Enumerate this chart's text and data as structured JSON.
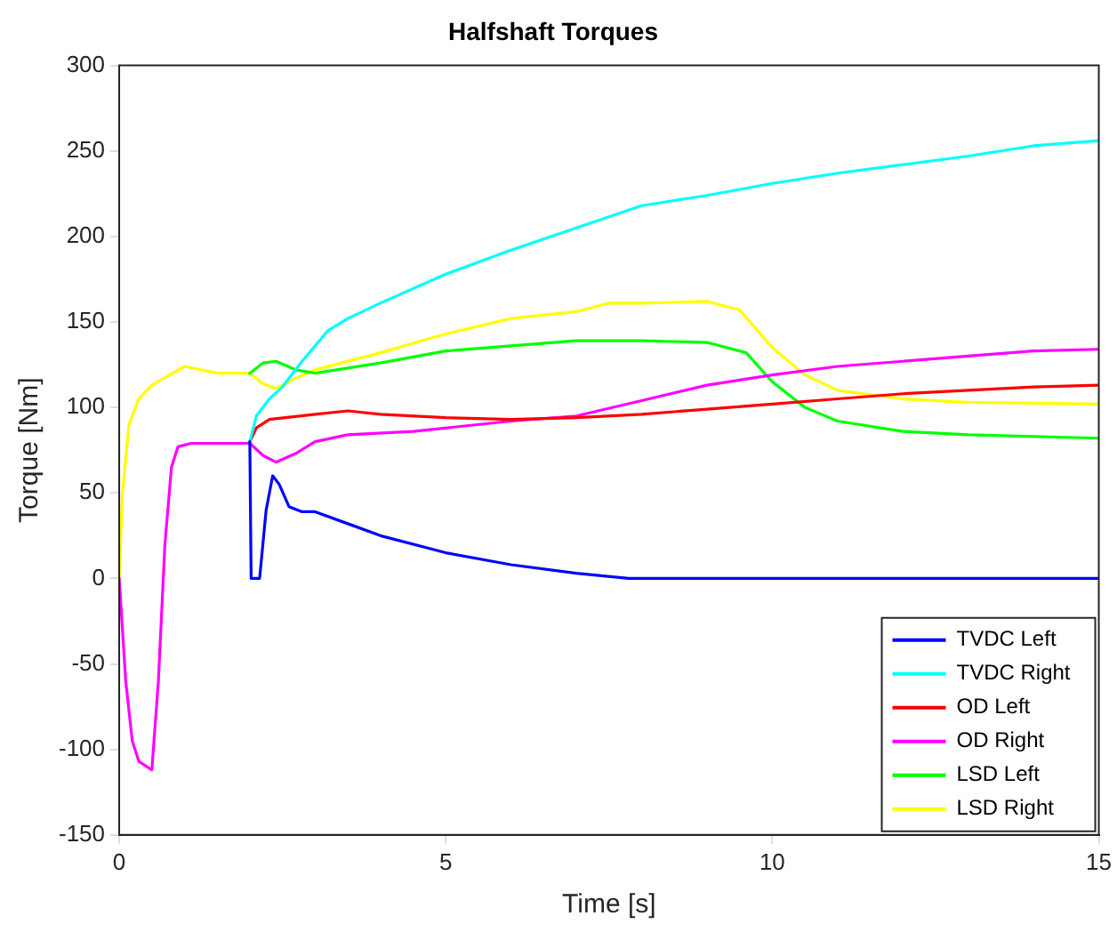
{
  "chart_data": {
    "type": "line",
    "title": "Halfshaft Torques",
    "xlabel": "Time [s]",
    "ylabel": "Torque [Nm]",
    "xlim": [
      0,
      15
    ],
    "xticks": [
      0,
      5,
      10,
      15
    ],
    "ylim": [
      -150,
      300
    ],
    "yticks": [
      -150,
      -100,
      -50,
      0,
      50,
      100,
      150,
      200,
      250,
      300
    ],
    "grid": false,
    "legend": "bottom right",
    "marker": "none",
    "line_style": "solid",
    "series": [
      {
        "name": "TVDC Left",
        "color": "#0000ff",
        "x": [
          2,
          2.02,
          2.15,
          2.25,
          2.35,
          2.45,
          2.6,
          2.8,
          3,
          3.5,
          4,
          5,
          6,
          7,
          7.8,
          15
        ],
        "values": [
          80,
          0,
          0,
          40,
          60,
          55,
          42,
          39,
          39,
          32,
          25,
          15,
          8,
          3,
          0,
          0
        ]
      },
      {
        "name": "TVDC Right",
        "color": "#00ffff",
        "x": [
          2,
          2.1,
          2.3,
          2.5,
          2.8,
          3.2,
          3.5,
          4,
          5,
          6,
          7,
          8,
          9,
          10,
          11,
          12,
          13,
          14,
          15
        ],
        "values": [
          80,
          95,
          105,
          112,
          127,
          145,
          152,
          161,
          178,
          192,
          205,
          218,
          224,
          231,
          237,
          242,
          247,
          253,
          256
        ]
      },
      {
        "name": "OD Left",
        "color": "#ff0000",
        "x": [
          2,
          2.1,
          2.3,
          3,
          3.5,
          4,
          5,
          6,
          7,
          8,
          9,
          10,
          11,
          12,
          13,
          14,
          15
        ],
        "values": [
          80,
          88,
          93,
          96,
          98,
          96,
          94,
          93,
          94,
          96,
          99,
          102,
          105,
          108,
          110,
          112,
          113
        ]
      },
      {
        "name": "OD Right",
        "color": "#ff00ff",
        "x": [
          0,
          0.1,
          0.2,
          0.3,
          0.5,
          0.6,
          0.7,
          0.8,
          0.9,
          1.1,
          2,
          2.2,
          2.4,
          2.7,
          3,
          3.5,
          4.5,
          6,
          7,
          8,
          9,
          10,
          11,
          12,
          13,
          14,
          15
        ],
        "values": [
          0,
          -60,
          -95,
          -107,
          -112,
          -60,
          20,
          65,
          77,
          79,
          79,
          72,
          68,
          73,
          80,
          84,
          86,
          92,
          95,
          104,
          113,
          119,
          124,
          127,
          130,
          133,
          134
        ]
      },
      {
        "name": "LSD Left",
        "color": "#00ff00",
        "x": [
          2,
          2.2,
          2.4,
          2.7,
          3,
          4,
          5,
          6,
          7,
          8,
          9,
          9.6,
          10,
          10.5,
          11,
          12,
          13,
          15
        ],
        "values": [
          120,
          126,
          127,
          122,
          120,
          126,
          133,
          136,
          139,
          139,
          138,
          132,
          115,
          100,
          92,
          86,
          84,
          82
        ]
      },
      {
        "name": "LSD Right",
        "color": "#ffff00",
        "x": [
          0,
          0.05,
          0.15,
          0.3,
          0.5,
          1,
          1.5,
          2,
          2.2,
          2.4,
          2.7,
          3,
          4,
          5,
          6,
          7,
          7.5,
          8,
          9,
          9.5,
          10,
          10.5,
          11,
          12,
          13,
          15
        ],
        "values": [
          0,
          50,
          90,
          105,
          113,
          124,
          120,
          120,
          114,
          111,
          117,
          122,
          132,
          143,
          152,
          156,
          161,
          161,
          162,
          157,
          135,
          119,
          110,
          105,
          103,
          102
        ]
      }
    ]
  }
}
